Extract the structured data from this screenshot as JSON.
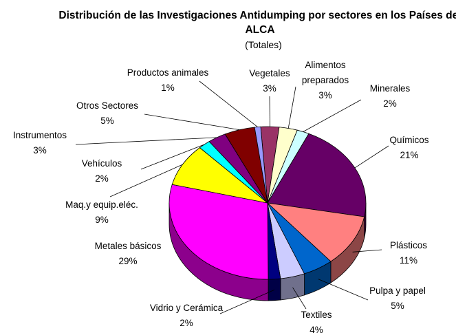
{
  "chart_data": {
    "type": "pie3d",
    "title": "Distribución de las Investigaciones Antidumping por sectores en los Países del ALCA",
    "subtitle": "(Totales)",
    "categories": [
      "Vegetales",
      "Alimentos preparados",
      "Minerales",
      "Químicos",
      "Plásticos",
      "Pulpa y papel",
      "Textiles",
      "Vidrio y Cerámica",
      "Metales básicos",
      "Maq.y equip.eléc.",
      "Vehículos",
      "Instrumentos",
      "Otros Sectores",
      "Productos animales"
    ],
    "values": [
      3,
      3,
      2,
      21,
      11,
      5,
      4,
      2,
      29,
      9,
      2,
      3,
      5,
      1
    ],
    "value_labels": [
      "3%",
      "3%",
      "2%",
      "21%",
      "11%",
      "5%",
      "4%",
      "2%",
      "29%",
      "9%",
      "2%",
      "3%",
      "5%",
      "1%"
    ],
    "colors": [
      "#993366",
      "#FFFFCC",
      "#CCFFFF",
      "#660066",
      "#FF8080",
      "#0066CC",
      "#CCCCFF",
      "#000080",
      "#FF00FF",
      "#FFFF00",
      "#00FFFF",
      "#800080",
      "#800000",
      "#9999FF"
    ]
  }
}
